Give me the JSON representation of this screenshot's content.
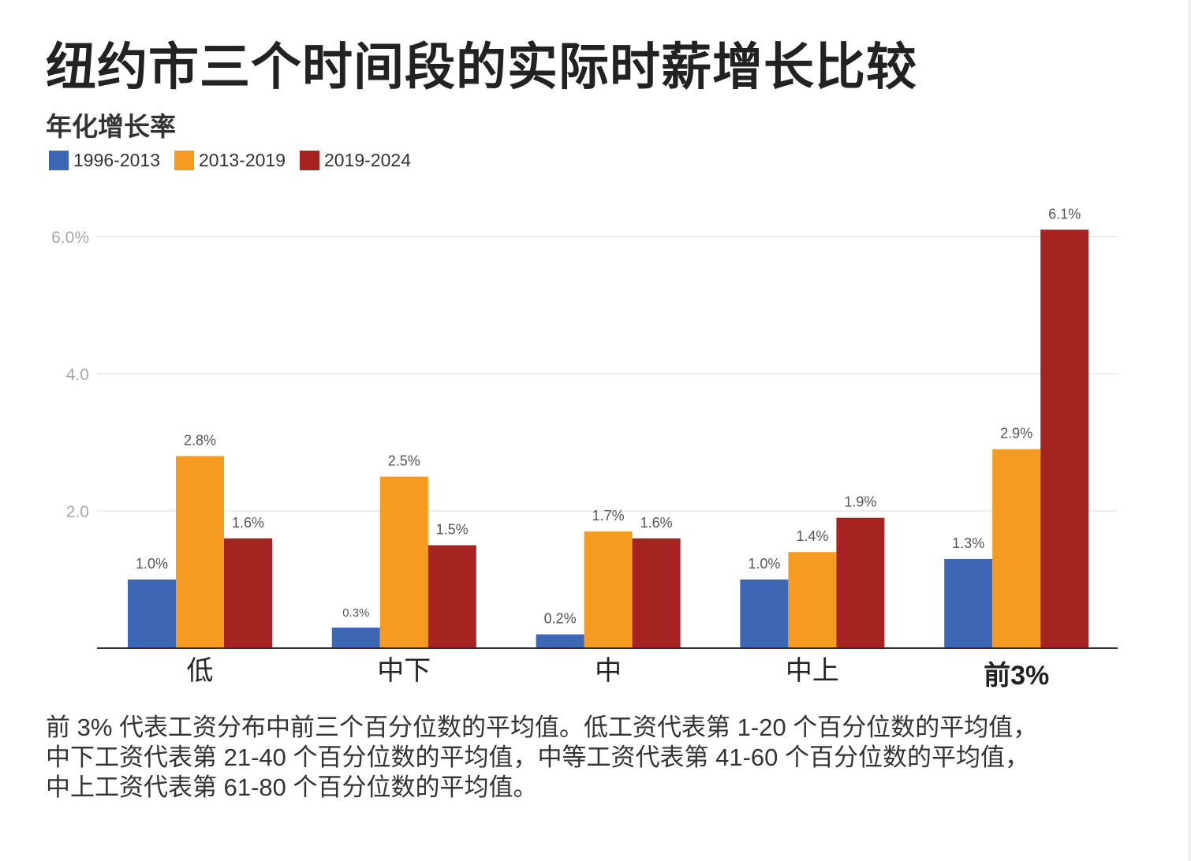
{
  "title": "纽约市三个时间段的实际时薪增长比较",
  "subtitle": "年化增长率",
  "colors": {
    "s1": "#3d67b4",
    "s2": "#f59b22",
    "s3": "#a52422"
  },
  "chart_data": {
    "type": "bar",
    "title": "纽约市三个时间段的实际时薪增长比较",
    "ylabel": "年化增长率",
    "xlabel": "",
    "categories": [
      "低",
      "中下",
      "中",
      "中上",
      "前3%"
    ],
    "series": [
      {
        "name": "1996-2013",
        "values": [
          1.0,
          0.3,
          0.2,
          1.0,
          1.3
        ],
        "labels": [
          "1.0%",
          "0.3%",
          "0.2%",
          "1.0%",
          "1.3%"
        ]
      },
      {
        "name": "2013-2019",
        "values": [
          2.8,
          2.5,
          1.7,
          1.4,
          2.9
        ],
        "labels": [
          "2.8%",
          "2.5%",
          "1.7%",
          "1.4%",
          "2.9%"
        ]
      },
      {
        "name": "2019-2024",
        "values": [
          1.6,
          1.5,
          1.6,
          1.9,
          6.1
        ],
        "labels": [
          "1.6%",
          "1.5%",
          "1.6%",
          "1.9%",
          "6.1%"
        ]
      }
    ],
    "yticks": [
      {
        "value": 2,
        "label": "2.0"
      },
      {
        "value": 4,
        "label": "4.0"
      },
      {
        "value": 6,
        "label": "6.0%"
      }
    ],
    "ylim": [
      0,
      6.1
    ],
    "grid": true,
    "legend": "top-left"
  },
  "footnote": [
    "前 3% 代表工资分布中前三个百分位数的平均值。低工资代表第 1-20 个百分位数的平均值，",
    "中下工资代表第 21-40 个百分位数的平均值，中等工资代表第 41-60 个百分位数的平均值，",
    "中上工资代表第 61-80 个百分位数的平均值。"
  ]
}
